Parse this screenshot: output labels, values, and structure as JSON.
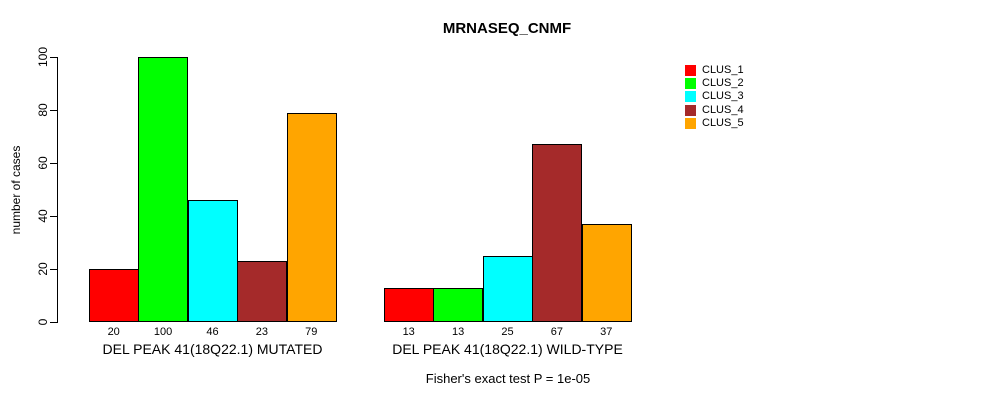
{
  "title": "MRNASEQ_CNMF",
  "caption": "Fisher's exact test P = 1e-05",
  "y_axis": {
    "label": "number of cases",
    "ticks": [
      0,
      20,
      40,
      60,
      80,
      100
    ]
  },
  "legend": {
    "entries": [
      {
        "label": "CLUS_1",
        "color": "#FF0000"
      },
      {
        "label": "CLUS_2",
        "color": "#00FF00"
      },
      {
        "label": "CLUS_3",
        "color": "#00FFFF"
      },
      {
        "label": "CLUS_4",
        "color": "#A52A2A"
      },
      {
        "label": "CLUS_5",
        "color": "#FFA500"
      }
    ]
  },
  "chart_data": {
    "type": "bar",
    "title": "MRNASEQ_CNMF",
    "xlabel": "",
    "ylabel": "number of cases",
    "ylim": [
      0,
      100
    ],
    "yticks": [
      0,
      20,
      40,
      60,
      80,
      100
    ],
    "grid": false,
    "legend_position": "right",
    "bar_value_labels": true,
    "categories": [
      "DEL PEAK 41(18Q22.1) MUTATED",
      "DEL PEAK 41(18Q22.1) WILD-TYPE"
    ],
    "series": [
      {
        "name": "CLUS_1",
        "color": "#FF0000",
        "values": [
          20,
          13
        ]
      },
      {
        "name": "CLUS_2",
        "color": "#00FF00",
        "values": [
          100,
          13
        ]
      },
      {
        "name": "CLUS_3",
        "color": "#00FFFF",
        "values": [
          46,
          25
        ]
      },
      {
        "name": "CLUS_4",
        "color": "#A52A2A",
        "values": [
          23,
          67
        ]
      },
      {
        "name": "CLUS_5",
        "color": "#FFA500",
        "values": [
          79,
          37
        ]
      }
    ],
    "annotation": "Fisher's exact test P = 1e-05"
  }
}
